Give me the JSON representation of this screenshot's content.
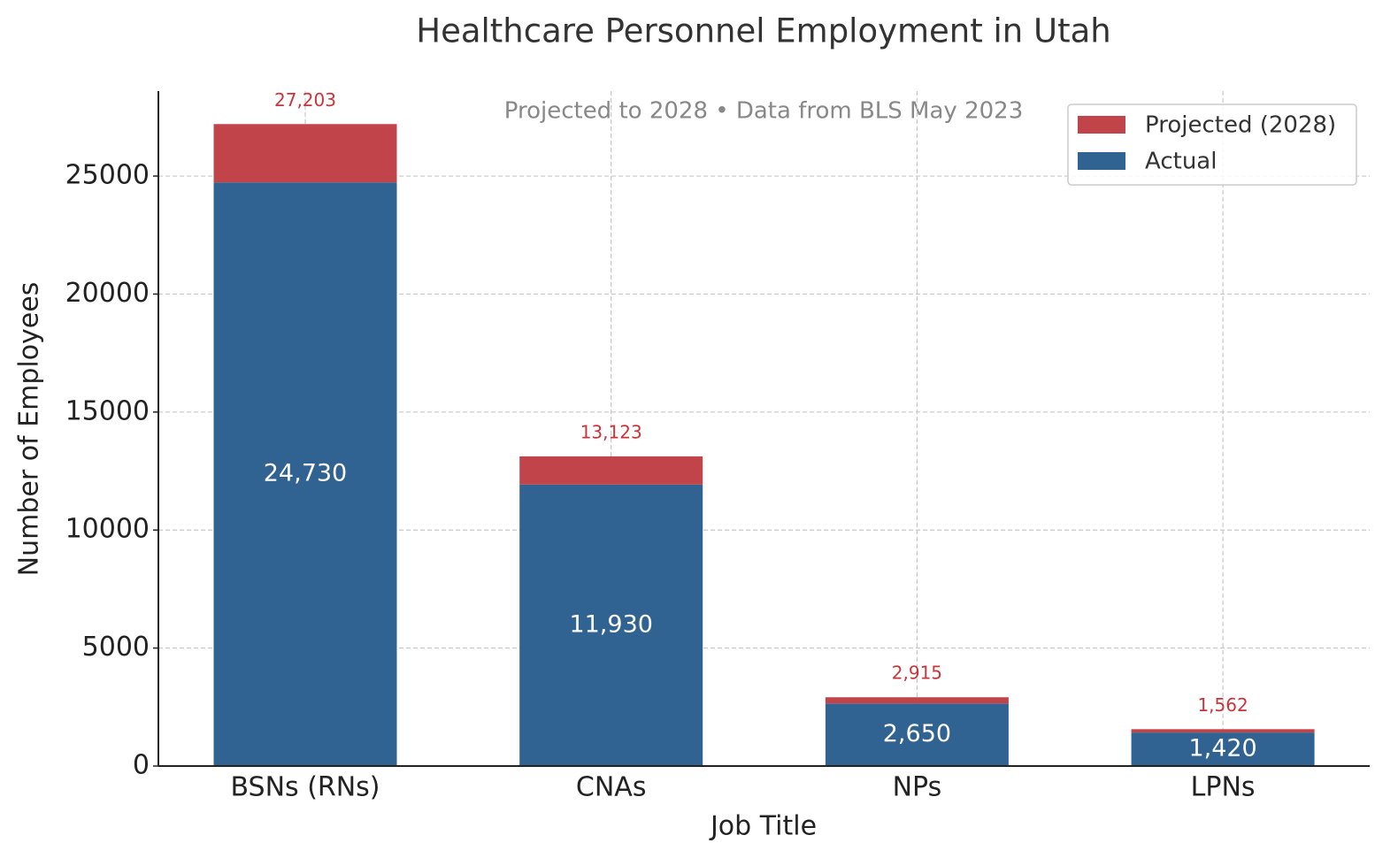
{
  "chart_data": {
    "type": "stacked_bar",
    "title": "Healthcare Personnel Employment in Utah",
    "subtitle": "Projected to 2028 • Data from BLS May 2023",
    "x_label": "Job Title",
    "y_label": "Number of Employees",
    "categories": [
      "BSNs (RNs)",
      "CNAs",
      "NPs",
      "LPNs"
    ],
    "series": [
      {
        "name": "Actual",
        "color": "#306391",
        "values": [
          24730,
          11930,
          2650,
          1420
        ],
        "value_labels": [
          "24,730",
          "11,930",
          "2,650",
          "1,420"
        ]
      },
      {
        "name": "Projected (2028)",
        "color": "#c0444a",
        "values": [
          2473,
          1193,
          265,
          142
        ]
      }
    ],
    "totals": {
      "values": [
        27203,
        13123,
        2915,
        1562
      ],
      "value_labels": [
        "27,203",
        "13,123",
        "2,915",
        "1,562"
      ],
      "color": "#c9343a"
    },
    "ylim": [
      0,
      28600
    ],
    "yticks": [
      0,
      5000,
      10000,
      15000,
      20000,
      25000
    ],
    "grid": true,
    "legend": "upper right"
  }
}
